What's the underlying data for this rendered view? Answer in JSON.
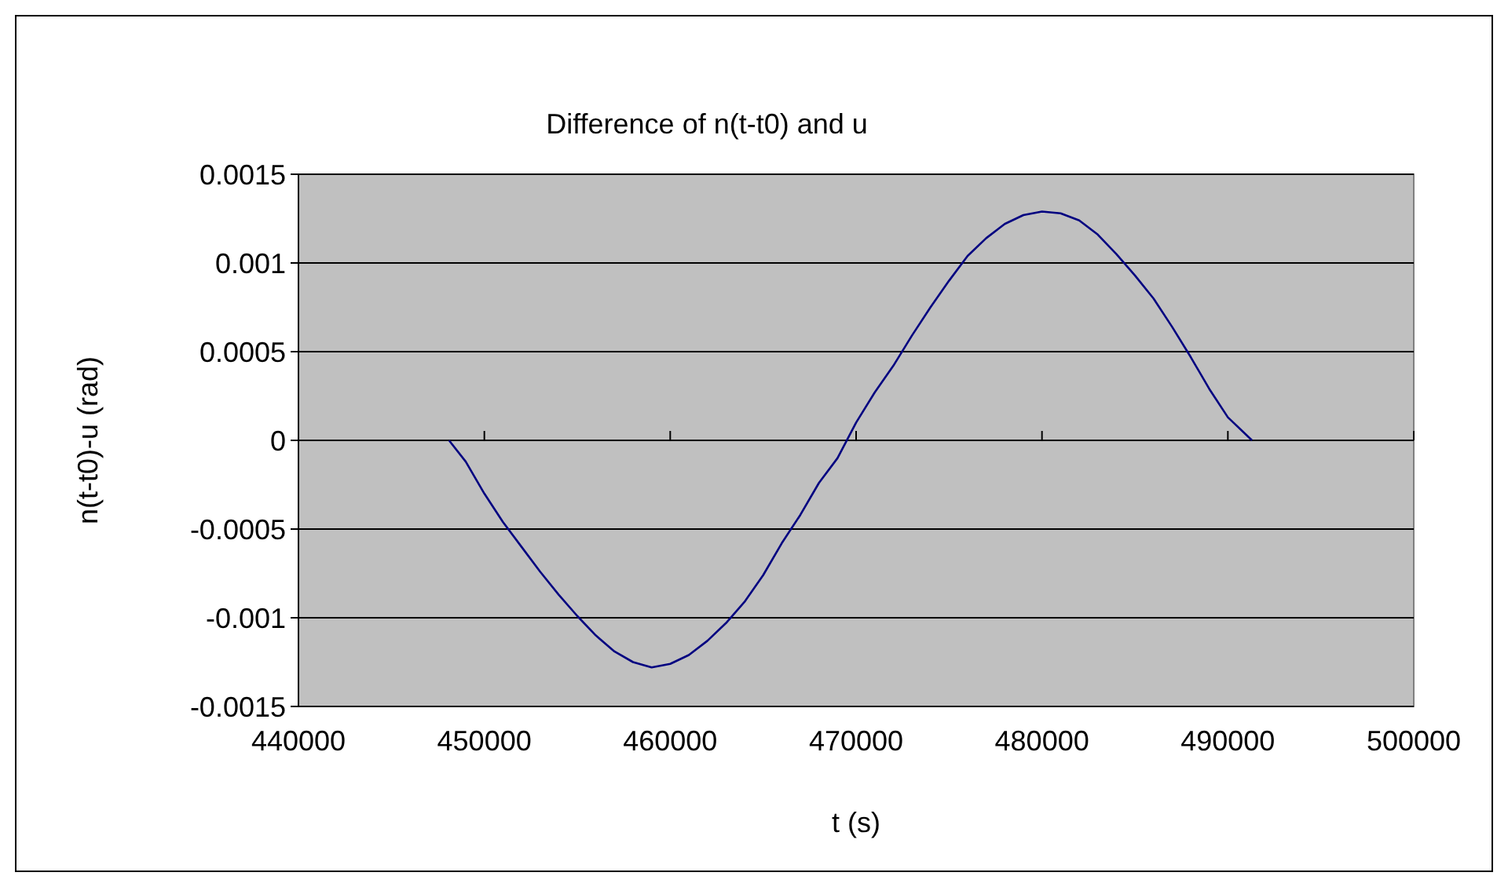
{
  "chart_data": {
    "type": "line",
    "title": "Difference of n(t-t0) and u",
    "xlabel": "t (s)",
    "ylabel": "n(t-t0)-u (rad)",
    "x": [
      448100,
      449000,
      450000,
      451000,
      452000,
      453000,
      454000,
      455000,
      456000,
      457000,
      458000,
      459000,
      460000,
      461000,
      462000,
      463000,
      464000,
      465000,
      466000,
      467000,
      468000,
      469000,
      470000,
      471000,
      472000,
      473000,
      474000,
      475000,
      476000,
      477000,
      478000,
      479000,
      480000,
      481000,
      482000,
      483000,
      484000,
      485000,
      486000,
      487000,
      488000,
      489000,
      490000,
      491300
    ],
    "series": [
      {
        "color": "#000080",
        "values": [
          0,
          -0.00012,
          -0.0003,
          -0.00046,
          -0.0006,
          -0.00074,
          -0.00087,
          -0.00099,
          -0.0011,
          -0.00119,
          -0.00125,
          -0.00128,
          -0.00126,
          -0.00121,
          -0.00113,
          -0.00103,
          -0.00091,
          -0.00076,
          -0.00058,
          -0.00042,
          -0.00024,
          -0.0001,
          0.0001,
          0.00027,
          0.00042,
          0.00059,
          0.00075,
          0.0009,
          0.00104,
          0.00114,
          0.00122,
          0.00127,
          0.00129,
          0.00128,
          0.00124,
          0.00116,
          0.00105,
          0.00093,
          0.0008,
          0.00064,
          0.00047,
          0.00029,
          0.00013,
          0
        ]
      }
    ],
    "xlim": [
      440000,
      500000
    ],
    "xticks": [
      440000,
      450000,
      460000,
      470000,
      480000,
      490000,
      500000
    ],
    "ylim": [
      -0.0015,
      0.0015
    ],
    "yticks": [
      -0.0015,
      -0.001,
      -0.0005,
      0,
      0.0005,
      0.001,
      0.0015
    ],
    "grid": "y",
    "marker": "none",
    "line_style": "solid"
  }
}
